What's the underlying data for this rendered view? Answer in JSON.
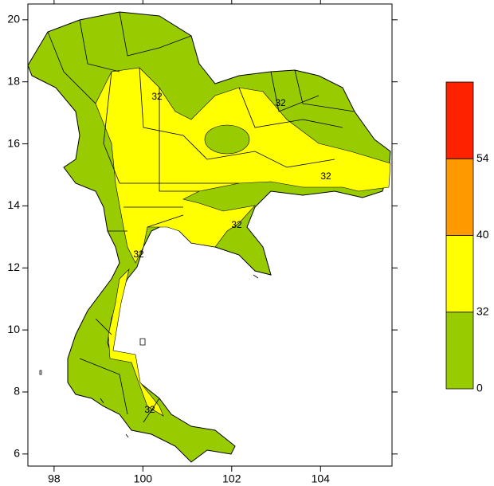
{
  "map": {
    "xlim": [
      97.41,
      105.61
    ],
    "xticks": [
      98,
      100,
      102,
      104
    ],
    "ylim": [
      5.61,
      20.51
    ],
    "yticks": [
      6,
      8,
      10,
      12,
      14,
      16,
      18,
      20
    ],
    "contour_labels": [
      "32",
      "32",
      "32",
      "32",
      "32",
      "32"
    ],
    "colorbar": {
      "levels": [
        0,
        32,
        40,
        54
      ],
      "colors": [
        "#99cc00",
        "#ffff00",
        "#ff9900",
        "#ff2200"
      ]
    }
  }
}
